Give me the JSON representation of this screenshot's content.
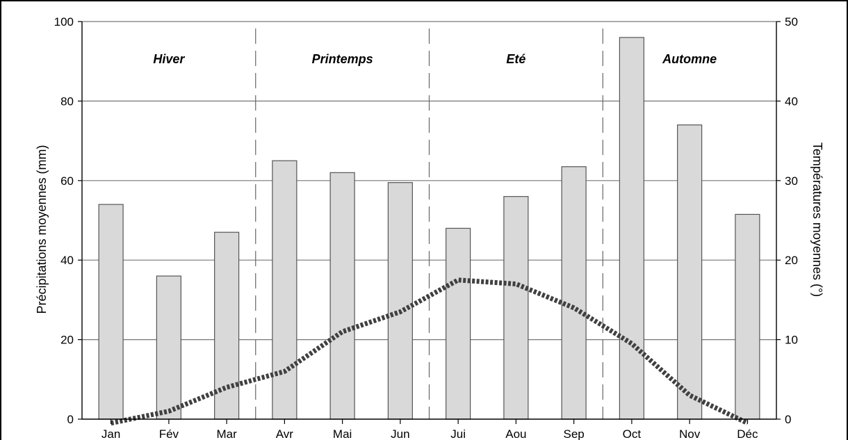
{
  "chart_data": {
    "type": "bar",
    "categories": [
      "Jan",
      "Fév",
      "Mar",
      "Avr",
      "Mai",
      "Jun",
      "Jui",
      "Aou",
      "Sep",
      "Oct",
      "Nov",
      "Déc"
    ],
    "series": [
      {
        "type": "bar",
        "axis": "left",
        "values": [
          54,
          36,
          47,
          65,
          62,
          59.5,
          48,
          56,
          63.5,
          96,
          74,
          51.5
        ]
      },
      {
        "type": "line",
        "axis": "right",
        "values": [
          -0.5,
          1,
          4,
          6,
          11,
          13.5,
          17.5,
          17,
          14,
          9.5,
          3,
          -0.5
        ]
      }
    ],
    "ylabel": "Précipitations moyennes (mm)",
    "ylim": [
      0,
      100
    ],
    "yticks": [
      0,
      20,
      40,
      60,
      80,
      100
    ],
    "y2label": "Températures moyennes (°)",
    "y2lim": [
      0,
      50
    ],
    "y2ticks": [
      0,
      10,
      20,
      30,
      40,
      50
    ],
    "grid": true,
    "season_dividers_after": [
      "Mar",
      "Jun",
      "Sep"
    ],
    "seasons": [
      {
        "label": "Hiver",
        "start": 0,
        "end": 3
      },
      {
        "label": "Printemps",
        "start": 3,
        "end": 6
      },
      {
        "label": "Eté",
        "start": 6,
        "end": 9
      },
      {
        "label": "Automne",
        "start": 9,
        "end": 12
      }
    ],
    "colors": {
      "bar_fill": "#d9d9d9",
      "bar_stroke": "#555555",
      "line": "#404040",
      "grid": "#777777"
    }
  }
}
